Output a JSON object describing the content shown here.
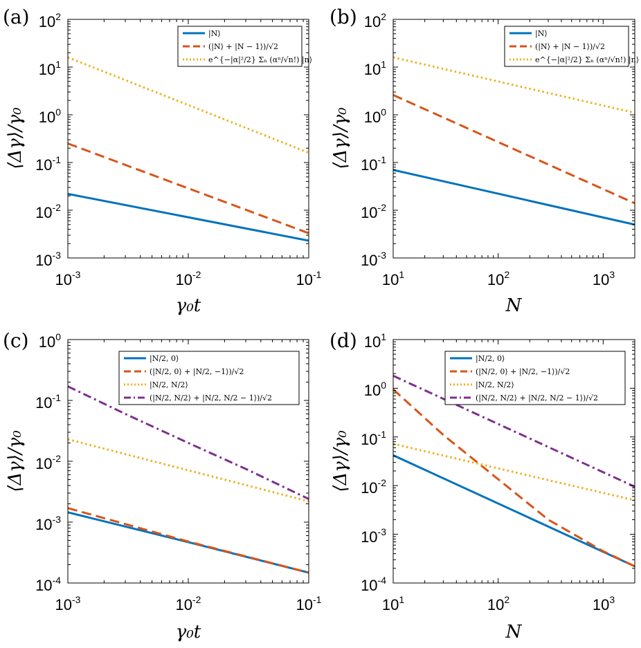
{
  "chart_data": [
    {
      "id": "a",
      "panel_label": "(a)",
      "type": "line",
      "xscale": "log",
      "yscale": "log",
      "xlim": [
        0.001,
        0.1
      ],
      "ylim": [
        0.001,
        100
      ],
      "xticks": [
        0.001,
        0.01,
        0.1
      ],
      "xtick_labels": [
        {
          "base": "10",
          "exp": "-3"
        },
        {
          "base": "10",
          "exp": "-2"
        },
        {
          "base": "10",
          "exp": "-1"
        }
      ],
      "yticks": [
        0.001,
        0.01,
        0.1,
        1,
        10,
        100
      ],
      "ytick_labels": [
        {
          "base": "10",
          "exp": "-3"
        },
        {
          "base": "10",
          "exp": "-2"
        },
        {
          "base": "10",
          "exp": "-1"
        },
        {
          "base": "10",
          "exp": "0"
        },
        {
          "base": "10",
          "exp": "1"
        },
        {
          "base": "10",
          "exp": "2"
        }
      ],
      "xlabel": "γ₀t",
      "ylabel": "⟨Δγ⟩/γ₀",
      "legend_position": "top-right",
      "series": [
        {
          "name": "|N⟩",
          "color": "#0072BD",
          "style": "solid",
          "x": [
            0.001,
            0.1
          ],
          "y": [
            0.022,
            0.0023
          ]
        },
        {
          "name": "(|N⟩ + |N − 1⟩)/√2",
          "color": "#D95319",
          "style": "dashed",
          "x": [
            0.001,
            0.1
          ],
          "y": [
            0.25,
            0.0033
          ]
        },
        {
          "name": "e^{−|α|²/2} Σₙ (αⁿ/√n!) |n⟩",
          "color": "#EDB120",
          "style": "dotted",
          "x": [
            0.001,
            0.1
          ],
          "y": [
            16,
            0.16
          ]
        }
      ]
    },
    {
      "id": "b",
      "panel_label": "(b)",
      "type": "line",
      "xscale": "log",
      "yscale": "log",
      "xlim": [
        10,
        2000
      ],
      "ylim": [
        0.001,
        100
      ],
      "xticks": [
        10,
        100,
        1000
      ],
      "xtick_labels": [
        {
          "base": "10",
          "exp": "1"
        },
        {
          "base": "10",
          "exp": "2"
        },
        {
          "base": "10",
          "exp": "3"
        }
      ],
      "yticks": [
        0.001,
        0.01,
        0.1,
        1,
        10,
        100
      ],
      "ytick_labels": [
        {
          "base": "10",
          "exp": "-3"
        },
        {
          "base": "10",
          "exp": "-2"
        },
        {
          "base": "10",
          "exp": "-1"
        },
        {
          "base": "10",
          "exp": "0"
        },
        {
          "base": "10",
          "exp": "1"
        },
        {
          "base": "10",
          "exp": "2"
        }
      ],
      "xlabel": "N",
      "ylabel": "⟨Δγ⟩/γ₀",
      "legend_position": "top-right",
      "series": [
        {
          "name": "|N⟩",
          "color": "#0072BD",
          "style": "solid",
          "x": [
            10,
            2000
          ],
          "y": [
            0.07,
            0.005
          ]
        },
        {
          "name": "(|N⟩ + |N − 1⟩)/√2",
          "color": "#D95319",
          "style": "dashed",
          "x": [
            10,
            2000
          ],
          "y": [
            2.6,
            0.014
          ]
        },
        {
          "name": "e^{−|α|²/2} Σₙ (αⁿ/√n!) |n⟩",
          "color": "#EDB120",
          "style": "dotted",
          "x": [
            10,
            2000
          ],
          "y": [
            16,
            1.1
          ]
        }
      ]
    },
    {
      "id": "c",
      "panel_label": "(c)",
      "type": "line",
      "xscale": "log",
      "yscale": "log",
      "xlim": [
        0.001,
        0.1
      ],
      "ylim": [
        0.0001,
        1
      ],
      "xticks": [
        0.001,
        0.01,
        0.1
      ],
      "xtick_labels": [
        {
          "base": "10",
          "exp": "-3"
        },
        {
          "base": "10",
          "exp": "-2"
        },
        {
          "base": "10",
          "exp": "-1"
        }
      ],
      "yticks": [
        0.0001,
        0.001,
        0.01,
        0.1,
        1
      ],
      "ytick_labels": [
        {
          "base": "10",
          "exp": "-4"
        },
        {
          "base": "10",
          "exp": "-3"
        },
        {
          "base": "10",
          "exp": "-2"
        },
        {
          "base": "10",
          "exp": "-1"
        },
        {
          "base": "10",
          "exp": "0"
        }
      ],
      "xlabel": "γ₀t",
      "ylabel": "⟨Δγ⟩/γ₀",
      "legend_position": "top-right",
      "series": [
        {
          "name": "|N/2, 0⟩",
          "color": "#0072BD",
          "style": "solid",
          "x": [
            0.001,
            0.01,
            0.1
          ],
          "y": [
            0.00145,
            0.00047,
            0.000148
          ]
        },
        {
          "name": "(|N/2, 0⟩ + |N/2, −1⟩)/√2",
          "color": "#D95319",
          "style": "dashed",
          "x": [
            0.001,
            0.01,
            0.1
          ],
          "y": [
            0.0017,
            0.00048,
            0.000148
          ]
        },
        {
          "name": "|N/2, N/2⟩",
          "color": "#EDB120",
          "style": "dotted",
          "x": [
            0.001,
            0.1
          ],
          "y": [
            0.023,
            0.0022
          ]
        },
        {
          "name": "(|N/2, N/2⟩ + |N/2, N/2 − 1⟩)/√2",
          "color": "#7E2F8E",
          "style": "dashdot",
          "x": [
            0.001,
            0.003,
            0.01,
            0.03,
            0.1
          ],
          "y": [
            0.17,
            0.06,
            0.02,
            0.0075,
            0.0024
          ]
        }
      ]
    },
    {
      "id": "d",
      "panel_label": "(d)",
      "type": "line",
      "xscale": "log",
      "yscale": "log",
      "xlim": [
        10,
        2000
      ],
      "ylim": [
        0.0001,
        10
      ],
      "xticks": [
        10,
        100,
        1000
      ],
      "xtick_labels": [
        {
          "base": "10",
          "exp": "1"
        },
        {
          "base": "10",
          "exp": "2"
        },
        {
          "base": "10",
          "exp": "3"
        }
      ],
      "yticks": [
        0.0001,
        0.001,
        0.01,
        0.1,
        1,
        10
      ],
      "ytick_labels": [
        {
          "base": "10",
          "exp": "-4"
        },
        {
          "base": "10",
          "exp": "-3"
        },
        {
          "base": "10",
          "exp": "-2"
        },
        {
          "base": "10",
          "exp": "-1"
        },
        {
          "base": "10",
          "exp": "0"
        },
        {
          "base": "10",
          "exp": "1"
        }
      ],
      "xlabel": "N",
      "ylabel": "⟨Δγ⟩/γ₀",
      "legend_position": "top-right",
      "series": [
        {
          "name": "|N/2, 0⟩",
          "color": "#0072BD",
          "style": "solid",
          "x": [
            10,
            2000
          ],
          "y": [
            0.042,
            0.00022
          ]
        },
        {
          "name": "(|N/2, 0⟩ + |N/2, −1⟩)/√2",
          "color": "#D95319",
          "style": "dashed",
          "x": [
            10,
            30,
            100,
            300,
            1000,
            2000
          ],
          "y": [
            0.95,
            0.11,
            0.0135,
            0.002,
            0.00045,
            0.00022
          ]
        },
        {
          "name": "|N/2, N/2⟩",
          "color": "#EDB120",
          "style": "dotted",
          "x": [
            10,
            2000
          ],
          "y": [
            0.072,
            0.005
          ]
        },
        {
          "name": "(|N/2, N/2⟩ + |N/2, N/2 − 1⟩)/√2",
          "color": "#7E2F8E",
          "style": "dashdot",
          "x": [
            10,
            2000
          ],
          "y": [
            1.8,
            0.0095
          ]
        }
      ]
    }
  ]
}
